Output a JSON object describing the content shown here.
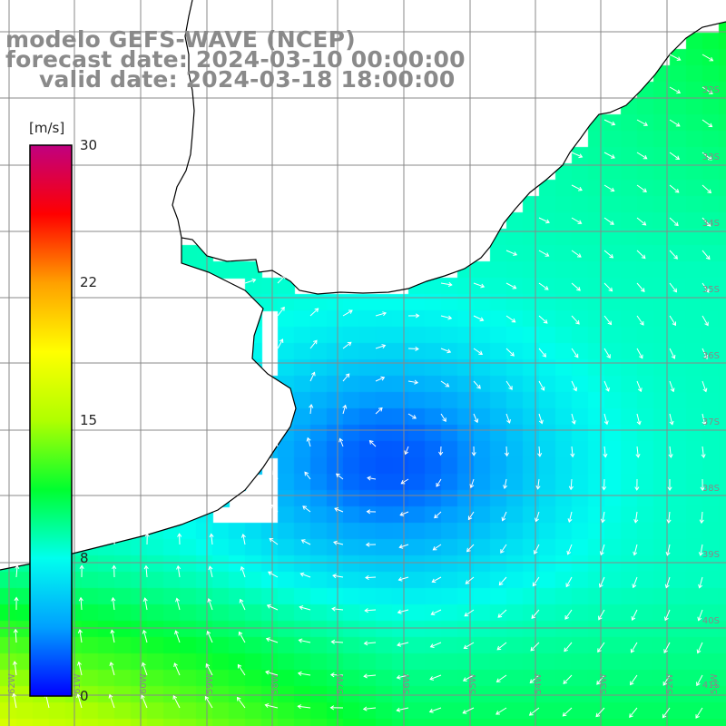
{
  "title": {
    "line1": "modelo GEFS-WAVE (NCEP)",
    "line2": "forecast date: 2024-03-10 00:00:00",
    "line3": "valid date: 2024-03-18 18:00:00"
  },
  "colorbar": {
    "unit": "[m/s]",
    "ticks": [
      "30",
      "22",
      "15",
      "8",
      "0"
    ],
    "tick_values": [
      30,
      22,
      15,
      8,
      0
    ],
    "range": [
      0,
      30
    ],
    "colors": [
      "#0000ff",
      "#00a0ff",
      "#00ffee",
      "#00ff30",
      "#b0ff00",
      "#ffff00",
      "#ffa000",
      "#ff0000",
      "#c00080"
    ]
  },
  "map": {
    "latitude_labels": [
      "32S",
      "33S",
      "34S",
      "35S",
      "36S",
      "37S",
      "38S",
      "39S",
      "40S",
      "41S"
    ],
    "longitude_labels": [
      "62W",
      "61W",
      "60W",
      "59W",
      "58W",
      "57W",
      "56W",
      "55W",
      "54W",
      "53W",
      "52W",
      "51W"
    ],
    "land_color": "#ffffff",
    "grid_color": "#888888",
    "coast_color": "#000000",
    "arrow_color": "#ffffff"
  }
}
